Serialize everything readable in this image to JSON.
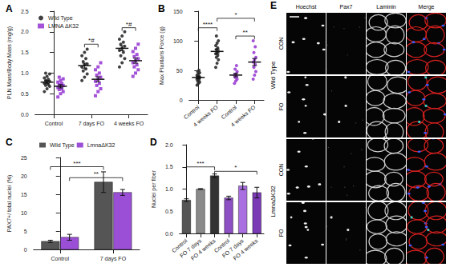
{
  "chart_data": [
    {
      "type": "scatter",
      "title": "A",
      "ylabel": "PLN Mass/Body Mass (mg/g)",
      "categories": [
        "Control",
        "7 days FO",
        "4 weeks FO"
      ],
      "ylim": [
        0,
        2.5
      ],
      "yticks": [
        {
          "value": 0,
          "label": "0.0"
        },
        0.5,
        {
          "value": 1,
          "label": "1.0"
        },
        1.5,
        {
          "value": 2,
          "label": "2.0"
        },
        2.5
      ],
      "grid": false,
      "legend": "upper left",
      "series": [
        {
          "name": "Wild Type",
          "color": "#2b2b2b",
          "marker": "circle",
          "values": [
            [
              0.55,
              0.62,
              0.68,
              0.7,
              0.72,
              0.75,
              0.78,
              0.8,
              0.82,
              0.85,
              0.88,
              0.92,
              0.98,
              1.0
            ],
            [
              0.82,
              0.9,
              0.98,
              1.05,
              1.1,
              1.15,
              1.2,
              1.22,
              1.28,
              1.35,
              1.42,
              1.5,
              1.58
            ],
            [
              1.15,
              1.25,
              1.35,
              1.42,
              1.5,
              1.55,
              1.6,
              1.65,
              1.7,
              1.75,
              1.82,
              1.9,
              2.0
            ]
          ],
          "mean": [
            0.78,
            1.18,
            1.6
          ],
          "error": [
            0.04,
            0.06,
            0.06
          ]
        },
        {
          "name": "LMNA ΔK32",
          "color": "#9a3fd4",
          "marker": "square",
          "values": [
            [
              0.42,
              0.5,
              0.55,
              0.6,
              0.62,
              0.65,
              0.68,
              0.7,
              0.72,
              0.75,
              0.78,
              0.82,
              0.86,
              0.9
            ],
            [
              0.45,
              0.55,
              0.62,
              0.7,
              0.75,
              0.8,
              0.85,
              0.9,
              0.95,
              1.0,
              1.08,
              1.15,
              1.25
            ],
            [
              0.92,
              1.0,
              1.08,
              1.15,
              1.2,
              1.25,
              1.3,
              1.35,
              1.4,
              1.45,
              1.52,
              1.6,
              1.7
            ]
          ],
          "mean": [
            0.68,
            0.85,
            1.3
          ],
          "error": [
            0.04,
            0.06,
            0.06
          ]
        }
      ],
      "annotations": [
        {
          "text": "*#",
          "from": {
            "category": 1,
            "series": "Wild Type"
          },
          "to": {
            "category": 1,
            "series": "LMNA ΔK32"
          },
          "y": 1.7
        },
        {
          "text": "*#",
          "from": {
            "category": 2,
            "series": "Wild Type"
          },
          "to": {
            "category": 2,
            "series": "LMNA ΔK32"
          },
          "y": 2.1
        }
      ]
    },
    {
      "type": "scatter",
      "title": "B",
      "ylabel": "Max Plantaris Force (g)",
      "categories": [
        "Control",
        "4 weeks FO",
        "Control",
        "4 weeks FO"
      ],
      "ylim": [
        0,
        150
      ],
      "yticks": [
        0,
        50,
        100,
        150
      ],
      "grid": false,
      "marker": "circle",
      "colors": [
        "#2b2b2b",
        "#2b2b2b",
        "#9a3fd4",
        "#9a3fd4"
      ],
      "values": [
        [
          25,
          28,
          30,
          32,
          34,
          35,
          36,
          38,
          39,
          40,
          42,
          44,
          46,
          48,
          50
        ],
        [
          55,
          62,
          68,
          72,
          75,
          78,
          80,
          82,
          85,
          88,
          92,
          96,
          100,
          108
        ],
        [
          28,
          32,
          35,
          38,
          40,
          42,
          44,
          48,
          52,
          58
        ],
        [
          35,
          42,
          48,
          55,
          60,
          64,
          68,
          72,
          80,
          90,
          100
        ]
      ],
      "mean": [
        38,
        82,
        42,
        64
      ],
      "error": [
        2,
        4,
        3,
        6
      ],
      "annotations": [
        {
          "text": "****",
          "from": {
            "category": 0
          },
          "to": {
            "category": 1
          },
          "y": 122
        },
        {
          "text": "**",
          "from": {
            "category": 2
          },
          "to": {
            "category": 3
          },
          "y": 108
        },
        {
          "text": "*",
          "from": {
            "category": 1
          },
          "to": {
            "category": 3
          },
          "y": 138
        }
      ]
    },
    {
      "type": "bar",
      "title": "C",
      "ylabel": "PAX7+/ total nuclei (%)",
      "categories": [
        "Control",
        "7 days FO"
      ],
      "ylim": [
        0,
        25
      ],
      "yticks": [
        0,
        5,
        10,
        15,
        20,
        25
      ],
      "grid": false,
      "legend": "top",
      "series": [
        {
          "name": "Wild Type",
          "color": "#555555",
          "values": [
            2.2,
            18.3
          ],
          "errors": [
            0.3,
            2.8
          ]
        },
        {
          "name": "LmnaΔK32",
          "color": "#9b4fd6",
          "values": [
            3.3,
            15.5
          ],
          "errors": [
            0.8,
            0.8
          ]
        }
      ],
      "annotations": [
        {
          "text": "***",
          "from": {
            "category": 0,
            "series": "Wild Type"
          },
          "to": {
            "category": 1,
            "series": "Wild Type"
          },
          "y": 22.5
        },
        {
          "text": "**",
          "from": {
            "category": 0,
            "series": "LmnaΔK32"
          },
          "to": {
            "category": 1,
            "series": "LmnaΔK32"
          },
          "y": 19.5
        }
      ]
    },
    {
      "type": "bar",
      "title": "D",
      "ylabel": "Nuclei per fiber",
      "categories": [
        "Control",
        "FO 7 days",
        "FO 4 weeks",
        "Control",
        "FO 7 days",
        "FO 4 weeks"
      ],
      "ylim": [
        0,
        2
      ],
      "yticks": [
        {
          "value": 0,
          "label": "0.0"
        },
        0.5,
        {
          "value": 1,
          "label": "1.0"
        },
        1.5,
        {
          "value": 2,
          "label": "2.0"
        }
      ],
      "grid": false,
      "values": [
        0.75,
        1.0,
        1.3,
        0.8,
        1.07,
        0.92
      ],
      "errors": [
        0.03,
        0.01,
        0.04,
        0.04,
        0.08,
        0.12
      ],
      "colors": [
        "#555555",
        "#8a8a8a",
        "#333333",
        "#8d4fc4",
        "#a96ee0",
        "#7a3ab5"
      ],
      "annotations": [
        {
          "text": "***",
          "from": {
            "category": 0
          },
          "to": {
            "category": 2
          },
          "y": 1.5
        },
        {
          "text": "*",
          "from": {
            "category": 2
          },
          "to": {
            "category": 5
          },
          "y": 1.4
        }
      ]
    }
  ],
  "image_panel": {
    "title": "E",
    "columns": [
      "Hoechst",
      "Pax7",
      "Laminin",
      "Merge"
    ],
    "groups": [
      {
        "label": "Wild Type",
        "rows": [
          "CON",
          "FO"
        ]
      },
      {
        "label": "LmnaΔK32",
        "rows": [
          "CON",
          "FO"
        ]
      }
    ]
  }
}
